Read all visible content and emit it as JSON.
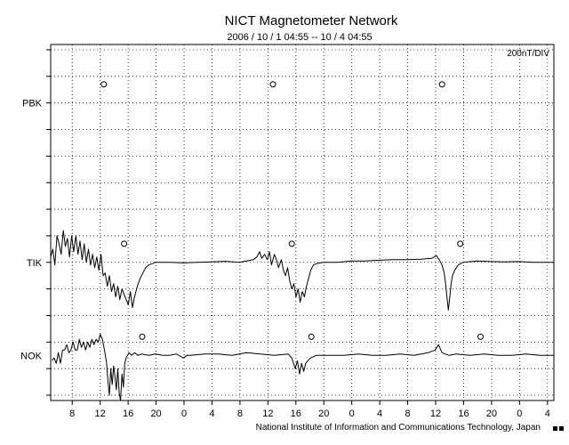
{
  "chart_data": {
    "type": "line",
    "title": "NICT Magnetometer Network",
    "subtitle": "2006 / 10 / 1   04:55 -- 10 / 4  04:55",
    "scale_label": "200nT/DIV",
    "credit": "National Institute of Information and Communications Technology, Japan",
    "x_unit": "hours from 2006-10-01 04:55",
    "xlim": [
      0,
      72
    ],
    "y_unit": "divisions (200 nT/div)",
    "ylim": [
      -5.2,
      8.2
    ],
    "grid": true,
    "x_ticks": [
      {
        "x": 3.083,
        "label": "8"
      },
      {
        "x": 7.083,
        "label": "12"
      },
      {
        "x": 11.083,
        "label": "16"
      },
      {
        "x": 15.083,
        "label": "20"
      },
      {
        "x": 19.083,
        "label": "0"
      },
      {
        "x": 23.083,
        "label": "4"
      },
      {
        "x": 27.083,
        "label": "8"
      },
      {
        "x": 31.083,
        "label": "12"
      },
      {
        "x": 35.083,
        "label": "16"
      },
      {
        "x": 39.083,
        "label": "20"
      },
      {
        "x": 43.083,
        "label": "0"
      },
      {
        "x": 47.083,
        "label": "4"
      },
      {
        "x": 51.083,
        "label": "8"
      },
      {
        "x": 55.083,
        "label": "12"
      },
      {
        "x": 59.083,
        "label": "16"
      },
      {
        "x": 63.083,
        "label": "20"
      },
      {
        "x": 67.083,
        "label": "0"
      },
      {
        "x": 71.083,
        "label": "4"
      }
    ],
    "series": [
      {
        "name": "PBK",
        "baseline": 6,
        "values": [],
        "noon_markers": [
          7.6,
          31.8,
          56.0
        ]
      },
      {
        "name": "TIK",
        "baseline": 0,
        "values": [
          [
            0,
            0.2
          ],
          [
            0.3,
            0.5
          ],
          [
            0.6,
            -0.1
          ],
          [
            0.9,
            1.0
          ],
          [
            1.2,
            0.7
          ],
          [
            1.5,
            0.3
          ],
          [
            1.8,
            1.2
          ],
          [
            2.1,
            0.6
          ],
          [
            2.4,
            0.9
          ],
          [
            2.7,
            0.2
          ],
          [
            3.0,
            1.0
          ],
          [
            3.3,
            0.4
          ],
          [
            3.6,
            1.0
          ],
          [
            3.9,
            0.3
          ],
          [
            4.2,
            0.8
          ],
          [
            4.5,
            0.1
          ],
          [
            4.8,
            0.7
          ],
          [
            5.1,
            0.0
          ],
          [
            5.4,
            0.5
          ],
          [
            5.7,
            -0.1
          ],
          [
            6.0,
            0.3
          ],
          [
            6.3,
            -0.2
          ],
          [
            6.6,
            0.2
          ],
          [
            6.9,
            -0.3
          ],
          [
            7.2,
            0.3
          ],
          [
            7.5,
            -0.5
          ],
          [
            7.8,
            -0.4
          ],
          [
            8.1,
            -0.9
          ],
          [
            8.4,
            -0.5
          ],
          [
            8.7,
            -1.1
          ],
          [
            9.0,
            -0.8
          ],
          [
            9.3,
            -1.3
          ],
          [
            9.6,
            -0.9
          ],
          [
            9.9,
            -1.4
          ],
          [
            10.2,
            -1.0
          ],
          [
            10.5,
            -1.2
          ],
          [
            10.8,
            -1.4
          ],
          [
            11.1,
            -1.6
          ],
          [
            11.4,
            -1.1
          ],
          [
            11.7,
            -1.7
          ],
          [
            12.0,
            -1.3
          ],
          [
            12.4,
            -0.9
          ],
          [
            12.8,
            -0.6
          ],
          [
            13.2,
            -0.4
          ],
          [
            13.6,
            -0.2
          ],
          [
            14.0,
            -0.1
          ],
          [
            15,
            0.0
          ],
          [
            17,
            0.0
          ],
          [
            19,
            -0.02
          ],
          [
            21,
            0.0
          ],
          [
            23,
            0.02
          ],
          [
            25,
            0.04
          ],
          [
            27,
            0.0
          ],
          [
            28,
            0.05
          ],
          [
            29,
            0.1
          ],
          [
            29.5,
            0.2
          ],
          [
            29.9,
            0.4
          ],
          [
            30.2,
            0.15
          ],
          [
            30.6,
            0.3
          ],
          [
            31.0,
            0.1
          ],
          [
            31.3,
            0.4
          ],
          [
            31.6,
            -0.1
          ],
          [
            32.0,
            0.3
          ],
          [
            32.3,
            0.1
          ],
          [
            32.6,
            -0.2
          ],
          [
            33.0,
            0.1
          ],
          [
            33.3,
            -0.3
          ],
          [
            33.6,
            -0.5
          ],
          [
            33.9,
            -0.2
          ],
          [
            34.2,
            -0.7
          ],
          [
            34.5,
            -1.0
          ],
          [
            34.8,
            -0.8
          ],
          [
            35.1,
            -1.3
          ],
          [
            35.4,
            -1.0
          ],
          [
            35.7,
            -1.5
          ],
          [
            36.0,
            -1.1
          ],
          [
            36.3,
            -1.3
          ],
          [
            36.6,
            -0.9
          ],
          [
            36.9,
            -0.6
          ],
          [
            37.2,
            -0.3
          ],
          [
            37.6,
            -0.1
          ],
          [
            38.0,
            -0.05
          ],
          [
            39.0,
            0.0
          ],
          [
            41,
            0.0
          ],
          [
            43,
            0.05
          ],
          [
            45,
            0.05
          ],
          [
            47,
            0.08
          ],
          [
            49,
            0.1
          ],
          [
            51,
            0.1
          ],
          [
            53,
            0.12
          ],
          [
            54.5,
            0.15
          ],
          [
            55.2,
            0.25
          ],
          [
            55.6,
            0.1
          ],
          [
            56.0,
            -0.1
          ],
          [
            56.3,
            -0.4
          ],
          [
            56.5,
            -0.8
          ],
          [
            56.7,
            -1.3
          ],
          [
            56.9,
            -1.8
          ],
          [
            57.1,
            -1.3
          ],
          [
            57.3,
            -0.8
          ],
          [
            57.5,
            -0.5
          ],
          [
            57.8,
            -0.3
          ],
          [
            58.3,
            -0.1
          ],
          [
            59,
            0.0
          ],
          [
            61,
            0.05
          ],
          [
            63,
            0.03
          ],
          [
            65,
            0.02
          ],
          [
            67,
            0.03
          ],
          [
            69,
            0.0
          ],
          [
            71,
            0.0
          ],
          [
            72,
            0.0
          ]
        ],
        "noon_markers": [
          10.5,
          34.5,
          58.6
        ]
      },
      {
        "name": "NOK",
        "baseline": -3.5,
        "values": [
          [
            0.2,
            -3.7
          ],
          [
            0.5,
            -3.6
          ],
          [
            0.8,
            -3.8
          ],
          [
            1.1,
            -3.4
          ],
          [
            1.4,
            -3.8
          ],
          [
            1.7,
            -3.3
          ],
          [
            2.0,
            -3.3
          ],
          [
            2.3,
            -3.1
          ],
          [
            2.6,
            -3.4
          ],
          [
            2.9,
            -3.3
          ],
          [
            3.2,
            -3.0
          ],
          [
            3.5,
            -3.3
          ],
          [
            3.8,
            -3.3
          ],
          [
            4.1,
            -2.9
          ],
          [
            4.4,
            -3.2
          ],
          [
            4.7,
            -3.0
          ],
          [
            5.0,
            -3.3
          ],
          [
            5.3,
            -3.0
          ],
          [
            5.6,
            -3.2
          ],
          [
            5.9,
            -2.9
          ],
          [
            6.2,
            -3.1
          ],
          [
            6.5,
            -2.9
          ],
          [
            6.8,
            -3.0
          ],
          [
            7.1,
            -2.7
          ],
          [
            7.4,
            -2.9
          ],
          [
            7.7,
            -3.3
          ],
          [
            8.0,
            -3.8
          ],
          [
            8.2,
            -4.5
          ],
          [
            8.4,
            -5.0
          ],
          [
            8.6,
            -4.0
          ],
          [
            8.8,
            -4.6
          ],
          [
            9.0,
            -3.9
          ],
          [
            9.2,
            -4.3
          ],
          [
            9.4,
            -4.8
          ],
          [
            9.6,
            -4.0
          ],
          [
            9.8,
            -4.9
          ],
          [
            10.0,
            -5.2
          ],
          [
            10.2,
            -4.2
          ],
          [
            10.4,
            -4.7
          ],
          [
            10.6,
            -3.8
          ],
          [
            10.8,
            -3.6
          ],
          [
            11.2,
            -3.4
          ],
          [
            11.6,
            -3.5
          ],
          [
            12.0,
            -3.4
          ],
          [
            12.5,
            -3.5
          ],
          [
            13,
            -3.45
          ],
          [
            14,
            -3.5
          ],
          [
            15,
            -3.45
          ],
          [
            16,
            -3.5
          ],
          [
            17,
            -3.5
          ],
          [
            18,
            -3.45
          ],
          [
            19,
            -3.6
          ],
          [
            19.5,
            -3.5
          ],
          [
            20,
            -3.5
          ],
          [
            22,
            -3.45
          ],
          [
            24,
            -3.45
          ],
          [
            26,
            -3.5
          ],
          [
            28,
            -3.4
          ],
          [
            30,
            -3.45
          ],
          [
            32,
            -3.5
          ],
          [
            34,
            -3.45
          ],
          [
            34.5,
            -3.6
          ],
          [
            35.0,
            -4.0
          ],
          [
            35.3,
            -3.7
          ],
          [
            35.6,
            -4.2
          ],
          [
            35.9,
            -3.8
          ],
          [
            36.2,
            -4.1
          ],
          [
            36.5,
            -3.8
          ],
          [
            36.8,
            -3.7
          ],
          [
            37.2,
            -3.6
          ],
          [
            38,
            -3.5
          ],
          [
            40,
            -3.5
          ],
          [
            42,
            -3.5
          ],
          [
            44,
            -3.45
          ],
          [
            46,
            -3.5
          ],
          [
            48,
            -3.5
          ],
          [
            50,
            -3.45
          ],
          [
            52,
            -3.5
          ],
          [
            54,
            -3.4
          ],
          [
            55,
            -3.3
          ],
          [
            55.5,
            -3.1
          ],
          [
            56,
            -3.4
          ],
          [
            57,
            -3.5
          ],
          [
            58,
            -3.45
          ],
          [
            60,
            -3.5
          ],
          [
            62,
            -3.45
          ],
          [
            64,
            -3.5
          ],
          [
            66,
            -3.5
          ],
          [
            68,
            -3.45
          ],
          [
            70,
            -3.5
          ],
          [
            72,
            -3.5
          ]
        ],
        "noon_markers": [
          13.1,
          37.3,
          61.5
        ]
      }
    ]
  }
}
